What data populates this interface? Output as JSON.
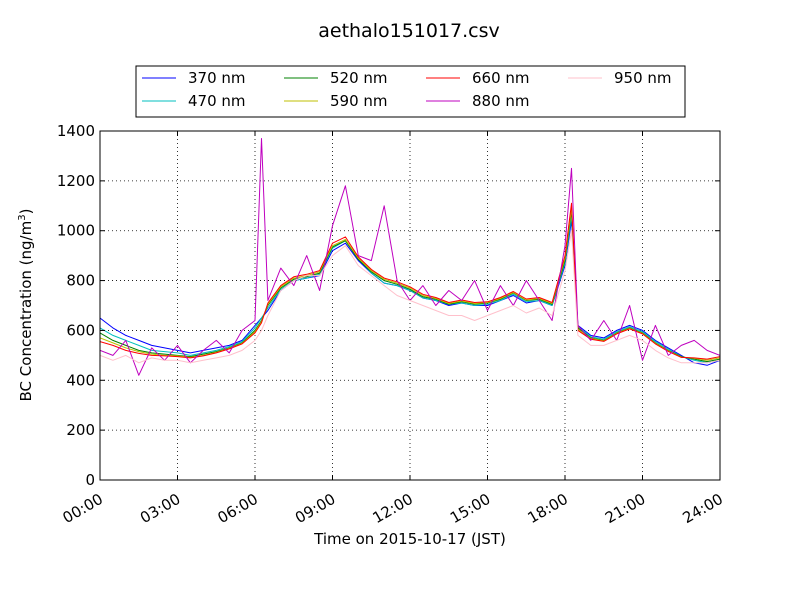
{
  "chart_data": {
    "type": "line",
    "title": "aethalo151017.csv",
    "xlabel": "Time on 2015-10-17 (JST)",
    "ylabel_main": "BC Concentration (ng/m",
    "ylabel_sup": "3",
    "ylabel_close": ")",
    "x_unit": "hours",
    "xlim": [
      0,
      24
    ],
    "ylim": [
      0,
      1400
    ],
    "x_ticks": [
      0,
      3,
      6,
      9,
      12,
      15,
      18,
      21,
      24
    ],
    "x_tick_labels": [
      "00:00",
      "03:00",
      "06:00",
      "09:00",
      "12:00",
      "15:00",
      "18:00",
      "21:00",
      "24:00"
    ],
    "y_ticks": [
      0,
      200,
      400,
      600,
      800,
      1000,
      1200,
      1400
    ],
    "y_tick_labels": [
      "0",
      "200",
      "400",
      "600",
      "800",
      "1000",
      "1200",
      "1400"
    ],
    "grid": true,
    "legend_placement": "top-center",
    "x": [
      0,
      0.5,
      1,
      1.5,
      2,
      2.5,
      3,
      3.5,
      4,
      4.5,
      5,
      5.5,
      6,
      6.25,
      6.5,
      7,
      7.5,
      8,
      8.5,
      9,
      9.5,
      10,
      10.5,
      11,
      11.5,
      12,
      12.5,
      13,
      13.5,
      14,
      14.5,
      15,
      15.5,
      16,
      16.5,
      17,
      17.5,
      18,
      18.25,
      18.5,
      19,
      19.5,
      20,
      20.5,
      21,
      21.5,
      22,
      22.5,
      23,
      23.5,
      24
    ],
    "series": [
      {
        "name": "370 nm",
        "color": "#0000ff",
        "values": [
          650,
          610,
          580,
          560,
          540,
          530,
          520,
          510,
          520,
          530,
          540,
          560,
          620,
          650,
          680,
          760,
          800,
          810,
          820,
          920,
          950,
          880,
          830,
          790,
          780,
          760,
          730,
          720,
          700,
          710,
          700,
          700,
          720,
          740,
          710,
          720,
          700,
          860,
          1040,
          620,
          580,
          570,
          600,
          620,
          600,
          560,
          530,
          500,
          470,
          460,
          480
        ]
      },
      {
        "name": "470 nm",
        "color": "#00bfbf",
        "values": [
          610,
          580,
          560,
          540,
          520,
          515,
          510,
          500,
          510,
          520,
          535,
          555,
          610,
          650,
          690,
          765,
          800,
          810,
          825,
          930,
          960,
          890,
          830,
          790,
          780,
          760,
          730,
          720,
          705,
          710,
          700,
          705,
          720,
          745,
          715,
          720,
          700,
          870,
          1060,
          615,
          575,
          565,
          595,
          615,
          595,
          555,
          525,
          495,
          480,
          470,
          480
        ]
      },
      {
        "name": "520 nm",
        "color": "#008000",
        "values": [
          590,
          560,
          540,
          520,
          510,
          505,
          500,
          495,
          505,
          515,
          530,
          550,
          600,
          640,
          700,
          770,
          805,
          815,
          830,
          935,
          960,
          885,
          835,
          800,
          785,
          765,
          735,
          725,
          705,
          715,
          705,
          710,
          725,
          750,
          720,
          725,
          705,
          880,
          1080,
          610,
          570,
          560,
          590,
          610,
          590,
          550,
          520,
          495,
          485,
          475,
          485
        ]
      },
      {
        "name": "590 nm",
        "color": "#bfbf00",
        "values": [
          570,
          550,
          530,
          515,
          505,
          500,
          498,
          492,
          500,
          512,
          528,
          548,
          595,
          635,
          705,
          775,
          810,
          820,
          835,
          940,
          965,
          890,
          840,
          805,
          790,
          770,
          740,
          728,
          708,
          718,
          708,
          712,
          728,
          752,
          722,
          728,
          708,
          890,
          1090,
          605,
          568,
          558,
          588,
          608,
          588,
          548,
          518,
          493,
          488,
          480,
          490
        ]
      },
      {
        "name": "660 nm",
        "color": "#ff0000",
        "values": [
          555,
          540,
          520,
          508,
          500,
          498,
          495,
          490,
          498,
          510,
          526,
          546,
          590,
          630,
          710,
          780,
          815,
          825,
          840,
          950,
          975,
          895,
          845,
          810,
          795,
          775,
          745,
          732,
          712,
          722,
          712,
          715,
          732,
          756,
          726,
          732,
          712,
          900,
          1110,
          600,
          565,
          556,
          586,
          606,
          586,
          546,
          516,
          492,
          490,
          485,
          495
        ]
      },
      {
        "name": "880 nm",
        "color": "#bf00bf",
        "values": [
          520,
          500,
          560,
          420,
          530,
          480,
          540,
          470,
          520,
          560,
          510,
          600,
          640,
          1370,
          720,
          850,
          780,
          900,
          760,
          1020,
          1180,
          900,
          880,
          1100,
          800,
          720,
          780,
          700,
          760,
          720,
          800,
          680,
          780,
          700,
          800,
          720,
          640,
          940,
          1250,
          620,
          560,
          640,
          560,
          700,
          480,
          620,
          500,
          540,
          560,
          520,
          500
        ]
      },
      {
        "name": "950 nm",
        "color": "#ffc0cb",
        "values": [
          500,
          480,
          500,
          470,
          490,
          480,
          480,
          470,
          480,
          490,
          500,
          520,
          560,
          600,
          660,
          760,
          800,
          820,
          820,
          900,
          940,
          860,
          820,
          780,
          740,
          720,
          700,
          680,
          660,
          660,
          640,
          660,
          680,
          700,
          670,
          690,
          660,
          840,
          1000,
          580,
          540,
          540,
          560,
          580,
          560,
          520,
          490,
          470,
          470,
          470,
          480
        ]
      }
    ]
  }
}
